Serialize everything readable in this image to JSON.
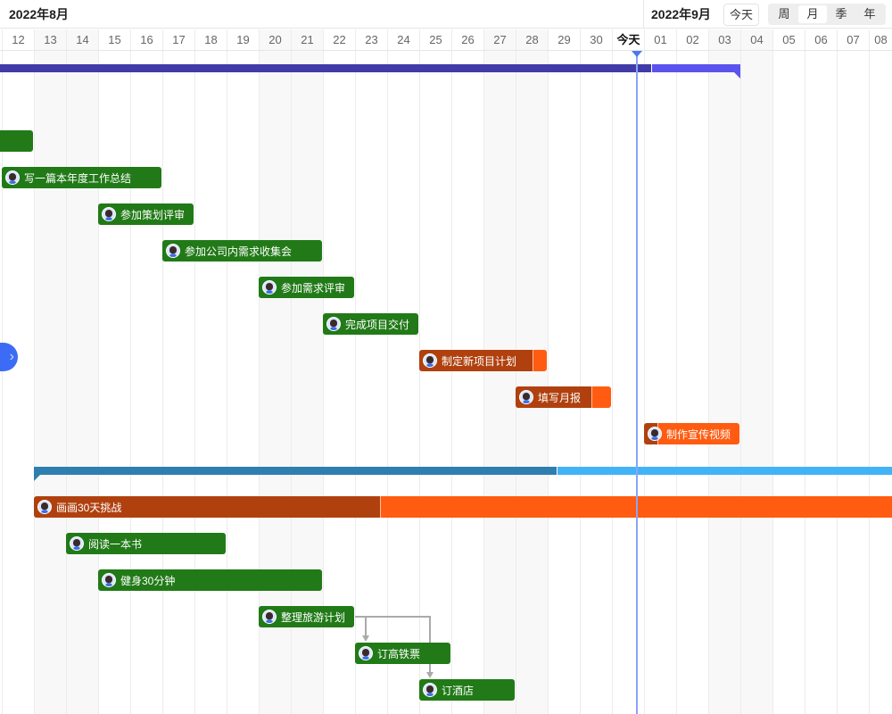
{
  "header": {
    "month_current": "2022年8月",
    "month_next": "2022年9月",
    "today_button": "今天",
    "view_modes": [
      {
        "label": "周",
        "selected": false
      },
      {
        "label": "月",
        "selected": true
      },
      {
        "label": "季",
        "selected": false
      },
      {
        "label": "年",
        "selected": false
      }
    ]
  },
  "timeline": {
    "first_day": "2022-08-12",
    "today": "2022-08-31",
    "days": [
      {
        "label": "12",
        "weekend": false
      },
      {
        "label": "13",
        "weekend": true
      },
      {
        "label": "14",
        "weekend": true
      },
      {
        "label": "15",
        "weekend": false
      },
      {
        "label": "16",
        "weekend": false
      },
      {
        "label": "17",
        "weekend": false
      },
      {
        "label": "18",
        "weekend": false
      },
      {
        "label": "19",
        "weekend": false
      },
      {
        "label": "20",
        "weekend": true
      },
      {
        "label": "21",
        "weekend": true
      },
      {
        "label": "22",
        "weekend": false
      },
      {
        "label": "23",
        "weekend": false
      },
      {
        "label": "24",
        "weekend": false
      },
      {
        "label": "25",
        "weekend": false
      },
      {
        "label": "26",
        "weekend": false
      },
      {
        "label": "27",
        "weekend": true
      },
      {
        "label": "28",
        "weekend": true
      },
      {
        "label": "29",
        "weekend": false
      },
      {
        "label": "30",
        "weekend": false
      },
      {
        "label": "今天",
        "weekend": false,
        "today": true
      },
      {
        "label": "01",
        "weekend": false
      },
      {
        "label": "02",
        "weekend": false
      },
      {
        "label": "03",
        "weekend": true
      },
      {
        "label": "04",
        "weekend": true
      },
      {
        "label": "05",
        "weekend": false
      },
      {
        "label": "06",
        "weekend": false
      },
      {
        "label": "07",
        "weekend": false
      },
      {
        "label": "08",
        "weekend": false
      }
    ]
  },
  "colors": {
    "task_green": "#217a17",
    "task_done_orange": "#b0410f",
    "task_rest_orange": "#ff5c11",
    "summary1_done": "#413ba8",
    "summary1_rest": "#5b53ee",
    "summary2_done": "#2d7fb0",
    "summary2_rest": "#42b3f7",
    "today_line": "#8aa5f7",
    "dependency": "#aaaaaa"
  },
  "tasks": [
    {
      "type": "summary",
      "start": null,
      "end": "2022-09-03",
      "progress_until": "2022-08-31",
      "scheme": "summary1"
    },
    {
      "type": "task",
      "name": "",
      "start": null,
      "end": "2022-08-12",
      "status": "green"
    },
    {
      "type": "task",
      "name": "写一篇本年度工作总结",
      "start": "2022-08-12",
      "end": "2022-08-16",
      "status": "green"
    },
    {
      "type": "task",
      "name": "参加策划评审",
      "start": "2022-08-15",
      "end": "2022-08-17",
      "status": "green"
    },
    {
      "type": "task",
      "name": "参加公司内需求收集会",
      "start": "2022-08-17",
      "end": "2022-08-21",
      "status": "green"
    },
    {
      "type": "task",
      "name": "参加需求评审",
      "start": "2022-08-20",
      "end": "2022-08-22",
      "status": "green"
    },
    {
      "type": "task",
      "name": "完成项目交付",
      "start": "2022-08-22",
      "end": "2022-08-24",
      "status": "green"
    },
    {
      "type": "task",
      "name": "制定新项目计划",
      "start": "2022-08-25",
      "end": "2022-08-28",
      "status": "orange",
      "progress": 0.89
    },
    {
      "type": "task",
      "name": "填写月报",
      "start": "2022-08-28",
      "end": "2022-08-30",
      "status": "orange",
      "progress": 0.79
    },
    {
      "type": "task",
      "name": "制作宣传视频",
      "start": "2022-09-01",
      "end": "2022-09-03",
      "status": "orange",
      "progress": 0.14
    },
    {
      "type": "summary",
      "start": "2022-08-13",
      "end": null,
      "progress_until": "2022-08-29",
      "scheme": "summary2"
    },
    {
      "type": "task",
      "name": "画画30天挑战",
      "start": "2022-08-13",
      "end": "2022-09-11",
      "status": "orange",
      "progress": 0.36
    },
    {
      "type": "task",
      "name": "阅读一本书",
      "start": "2022-08-14",
      "end": "2022-08-18",
      "status": "green"
    },
    {
      "type": "task",
      "name": "健身30分钟",
      "start": "2022-08-15",
      "end": "2022-08-21",
      "status": "green"
    },
    {
      "type": "task",
      "name": "整理旅游计划",
      "start": "2022-08-20",
      "end": "2022-08-22",
      "status": "green"
    },
    {
      "type": "task",
      "name": "订高铁票",
      "start": "2022-08-23",
      "end": "2022-08-25",
      "status": "green"
    },
    {
      "type": "task",
      "name": "订酒店",
      "start": "2022-08-25",
      "end": "2022-08-27",
      "status": "green"
    }
  ],
  "dependencies": [
    {
      "from": "整理旅游计划",
      "to": "订高铁票"
    },
    {
      "from": "整理旅游计划",
      "to": "订酒店"
    }
  ]
}
